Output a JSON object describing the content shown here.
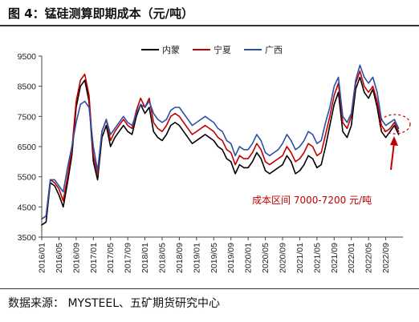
{
  "header": {
    "title": "图 4：锰硅测算即期成本（元/吨）"
  },
  "footer": {
    "source": "数据来源：  MYSTEEL、五矿期货研究中心"
  },
  "chart_data": {
    "type": "line",
    "title": "图 4：锰硅测算即期成本（元/吨）",
    "xlabel": "",
    "ylabel": "",
    "ylim": [
      3500,
      9500
    ],
    "yticks": [
      3500,
      4500,
      5500,
      6500,
      7500,
      8500,
      9500
    ],
    "xlim": [
      "2016-01",
      "2023-01"
    ],
    "xticks": [
      "2016/01",
      "2016/05",
      "2016/09",
      "2017/01",
      "2017/05",
      "2017/09",
      "2018/01",
      "2018/05",
      "2018/09",
      "2019/01",
      "2019/05",
      "2019/09",
      "2020/01",
      "2020/05",
      "2020/09",
      "2021/01",
      "2021/05",
      "2021/09",
      "2022/01",
      "2022/05",
      "2022/09"
    ],
    "legend": {
      "placement": "top-center"
    },
    "grid": false,
    "annotation": "成本区间 7000-7200 元/吨",
    "series": [
      {
        "name": "内蒙",
        "color": "#000000",
        "x": [
          "2016-01",
          "2016-02",
          "2016-03",
          "2016-04",
          "2016-05",
          "2016-06",
          "2016-07",
          "2016-08",
          "2016-09",
          "2016-10",
          "2016-11",
          "2016-12",
          "2017-01",
          "2017-02",
          "2017-03",
          "2017-04",
          "2017-05",
          "2017-06",
          "2017-07",
          "2017-08",
          "2017-09",
          "2017-10",
          "2017-11",
          "2017-12",
          "2018-01",
          "2018-02",
          "2018-03",
          "2018-04",
          "2018-05",
          "2018-06",
          "2018-07",
          "2018-08",
          "2018-09",
          "2018-10",
          "2018-11",
          "2018-12",
          "2019-01",
          "2019-02",
          "2019-03",
          "2019-04",
          "2019-05",
          "2019-06",
          "2019-07",
          "2019-08",
          "2019-09",
          "2019-10",
          "2019-11",
          "2019-12",
          "2020-01",
          "2020-02",
          "2020-03",
          "2020-04",
          "2020-05",
          "2020-06",
          "2020-07",
          "2020-08",
          "2020-09",
          "2020-10",
          "2020-11",
          "2020-12",
          "2021-01",
          "2021-02",
          "2021-03",
          "2021-04",
          "2021-05",
          "2021-06",
          "2021-07",
          "2021-08",
          "2021-09",
          "2021-10",
          "2021-11",
          "2021-12",
          "2022-01",
          "2022-02",
          "2022-03",
          "2022-04",
          "2022-05",
          "2022-06",
          "2022-07",
          "2022-08",
          "2022-09",
          "2022-10",
          "2022-11",
          "2022-12"
        ],
        "values": [
          3900,
          4000,
          5300,
          5200,
          4900,
          4500,
          5300,
          6200,
          7800,
          8500,
          8700,
          8000,
          6000,
          5400,
          6800,
          7200,
          6500,
          6800,
          7000,
          7200,
          7000,
          6900,
          7500,
          7900,
          7600,
          7800,
          7000,
          6800,
          6700,
          6900,
          7200,
          7300,
          7200,
          7000,
          6800,
          6600,
          6700,
          6800,
          6900,
          6800,
          6700,
          6500,
          6400,
          6100,
          6000,
          5600,
          5900,
          5800,
          5800,
          6000,
          6300,
          6100,
          5700,
          5600,
          5700,
          5800,
          5900,
          6200,
          6000,
          5600,
          5700,
          5900,
          6200,
          6100,
          5800,
          5900,
          6500,
          7200,
          7900,
          8300,
          7000,
          6800,
          7200,
          8400,
          8800,
          8300,
          8100,
          8400,
          7800,
          7000,
          6800,
          7000,
          7200,
          6900
        ]
      },
      {
        "name": "宁夏",
        "color": "#c00000",
        "x": [
          "2016-01",
          "2016-02",
          "2016-03",
          "2016-04",
          "2016-05",
          "2016-06",
          "2016-07",
          "2016-08",
          "2016-09",
          "2016-10",
          "2016-11",
          "2016-12",
          "2017-01",
          "2017-02",
          "2017-03",
          "2017-04",
          "2017-05",
          "2017-06",
          "2017-07",
          "2017-08",
          "2017-09",
          "2017-10",
          "2017-11",
          "2017-12",
          "2018-01",
          "2018-02",
          "2018-03",
          "2018-04",
          "2018-05",
          "2018-06",
          "2018-07",
          "2018-08",
          "2018-09",
          "2018-10",
          "2018-11",
          "2018-12",
          "2019-01",
          "2019-02",
          "2019-03",
          "2019-04",
          "2019-05",
          "2019-06",
          "2019-07",
          "2019-08",
          "2019-09",
          "2019-10",
          "2019-11",
          "2019-12",
          "2020-01",
          "2020-02",
          "2020-03",
          "2020-04",
          "2020-05",
          "2020-06",
          "2020-07",
          "2020-08",
          "2020-09",
          "2020-10",
          "2020-11",
          "2020-12",
          "2021-01",
          "2021-02",
          "2021-03",
          "2021-04",
          "2021-05",
          "2021-06",
          "2021-07",
          "2021-08",
          "2021-09",
          "2021-10",
          "2021-11",
          "2021-12",
          "2022-01",
          "2022-02",
          "2022-03",
          "2022-04",
          "2022-05",
          "2022-06",
          "2022-07",
          "2022-08",
          "2022-09",
          "2022-10",
          "2022-11",
          "2022-12"
        ],
        "values": [
          4100,
          4200,
          5400,
          5300,
          5100,
          4700,
          5500,
          6400,
          8000,
          8700,
          8900,
          8200,
          6200,
          5600,
          7000,
          7400,
          6700,
          7000,
          7200,
          7400,
          7200,
          7100,
          7700,
          8100,
          7800,
          8100,
          7300,
          7100,
          7000,
          7200,
          7500,
          7600,
          7500,
          7300,
          7100,
          6900,
          7000,
          7100,
          7200,
          7100,
          7000,
          6800,
          6700,
          6400,
          6300,
          5900,
          6200,
          6100,
          6100,
          6300,
          6600,
          6400,
          6000,
          5900,
          6000,
          6100,
          6200,
          6500,
          6300,
          6000,
          6100,
          6300,
          6600,
          6500,
          6200,
          6300,
          6900,
          7500,
          8200,
          8600,
          7300,
          7100,
          7500,
          8600,
          9000,
          8500,
          8300,
          8500,
          8000,
          7200,
          7000,
          7100,
          7300,
          7000
        ]
      },
      {
        "name": "广西",
        "color": "#2e4fa8",
        "x": [
          "2016-01",
          "2016-02",
          "2016-03",
          "2016-04",
          "2016-05",
          "2016-06",
          "2016-07",
          "2016-08",
          "2016-09",
          "2016-10",
          "2016-11",
          "2016-12",
          "2017-01",
          "2017-02",
          "2017-03",
          "2017-04",
          "2017-05",
          "2017-06",
          "2017-07",
          "2017-08",
          "2017-09",
          "2017-10",
          "2017-11",
          "2017-12",
          "2018-01",
          "2018-02",
          "2018-03",
          "2018-04",
          "2018-05",
          "2018-06",
          "2018-07",
          "2018-08",
          "2018-09",
          "2018-10",
          "2018-11",
          "2018-12",
          "2019-01",
          "2019-02",
          "2019-03",
          "2019-04",
          "2019-05",
          "2019-06",
          "2019-07",
          "2019-08",
          "2019-09",
          "2019-10",
          "2019-11",
          "2019-12",
          "2020-01",
          "2020-02",
          "2020-03",
          "2020-04",
          "2020-05",
          "2020-06",
          "2020-07",
          "2020-08",
          "2020-09",
          "2020-10",
          "2020-11",
          "2020-12",
          "2021-01",
          "2021-02",
          "2021-03",
          "2021-04",
          "2021-05",
          "2021-06",
          "2021-07",
          "2021-08",
          "2021-09",
          "2021-10",
          "2021-11",
          "2021-12",
          "2022-01",
          "2022-02",
          "2022-03",
          "2022-04",
          "2022-05",
          "2022-06",
          "2022-07",
          "2022-08",
          "2022-09",
          "2022-10",
          "2022-11",
          "2022-12"
        ],
        "values": [
          4100,
          4200,
          5400,
          5400,
          5200,
          5000,
          5800,
          6500,
          7300,
          7900,
          8000,
          7800,
          6500,
          5700,
          7000,
          7400,
          6900,
          7100,
          7300,
          7500,
          7300,
          7200,
          7600,
          7900,
          7800,
          8000,
          7600,
          7400,
          7300,
          7400,
          7700,
          7800,
          7800,
          7600,
          7400,
          7200,
          7300,
          7400,
          7500,
          7400,
          7300,
          7100,
          7000,
          6700,
          6600,
          6200,
          6500,
          6400,
          6400,
          6600,
          6900,
          6700,
          6300,
          6200,
          6300,
          6400,
          6600,
          6900,
          6700,
          6400,
          6500,
          6700,
          7000,
          6900,
          6600,
          6700,
          7300,
          7800,
          8500,
          8800,
          7500,
          7300,
          7600,
          8700,
          9200,
          8800,
          8600,
          8800,
          8300,
          7400,
          7200,
          7300,
          7400,
          7100
        ]
      }
    ]
  }
}
